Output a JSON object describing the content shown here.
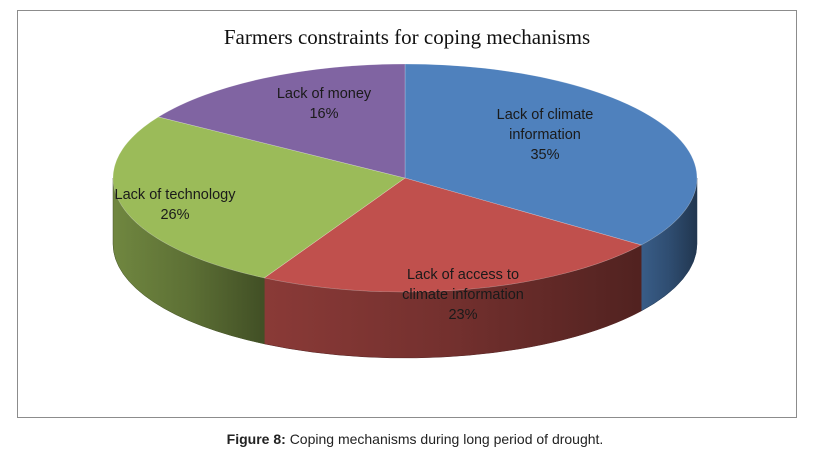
{
  "chart_data": {
    "type": "pie",
    "title": "Farmers constraints for coping mechanisms",
    "slices": [
      {
        "label_lines": [
          "Lack of climate",
          "information"
        ],
        "value": 35,
        "pct_label": "35%",
        "color": "#4f81bd"
      },
      {
        "label_lines": [
          "Lack of access to",
          "climate information"
        ],
        "value": 23,
        "pct_label": "23%",
        "color": "#c0504d"
      },
      {
        "label_lines": [
          "Lack of technology"
        ],
        "value": 26,
        "pct_label": "26%",
        "color": "#9bbb59"
      },
      {
        "label_lines": [
          "Lack of money"
        ],
        "value": 16,
        "pct_label": "16%",
        "color": "#8064a2"
      }
    ],
    "style": "3d",
    "legend": "none"
  },
  "figure": {
    "label": "Figure 8:",
    "caption": "Coping mechanisms during long period of drought."
  }
}
